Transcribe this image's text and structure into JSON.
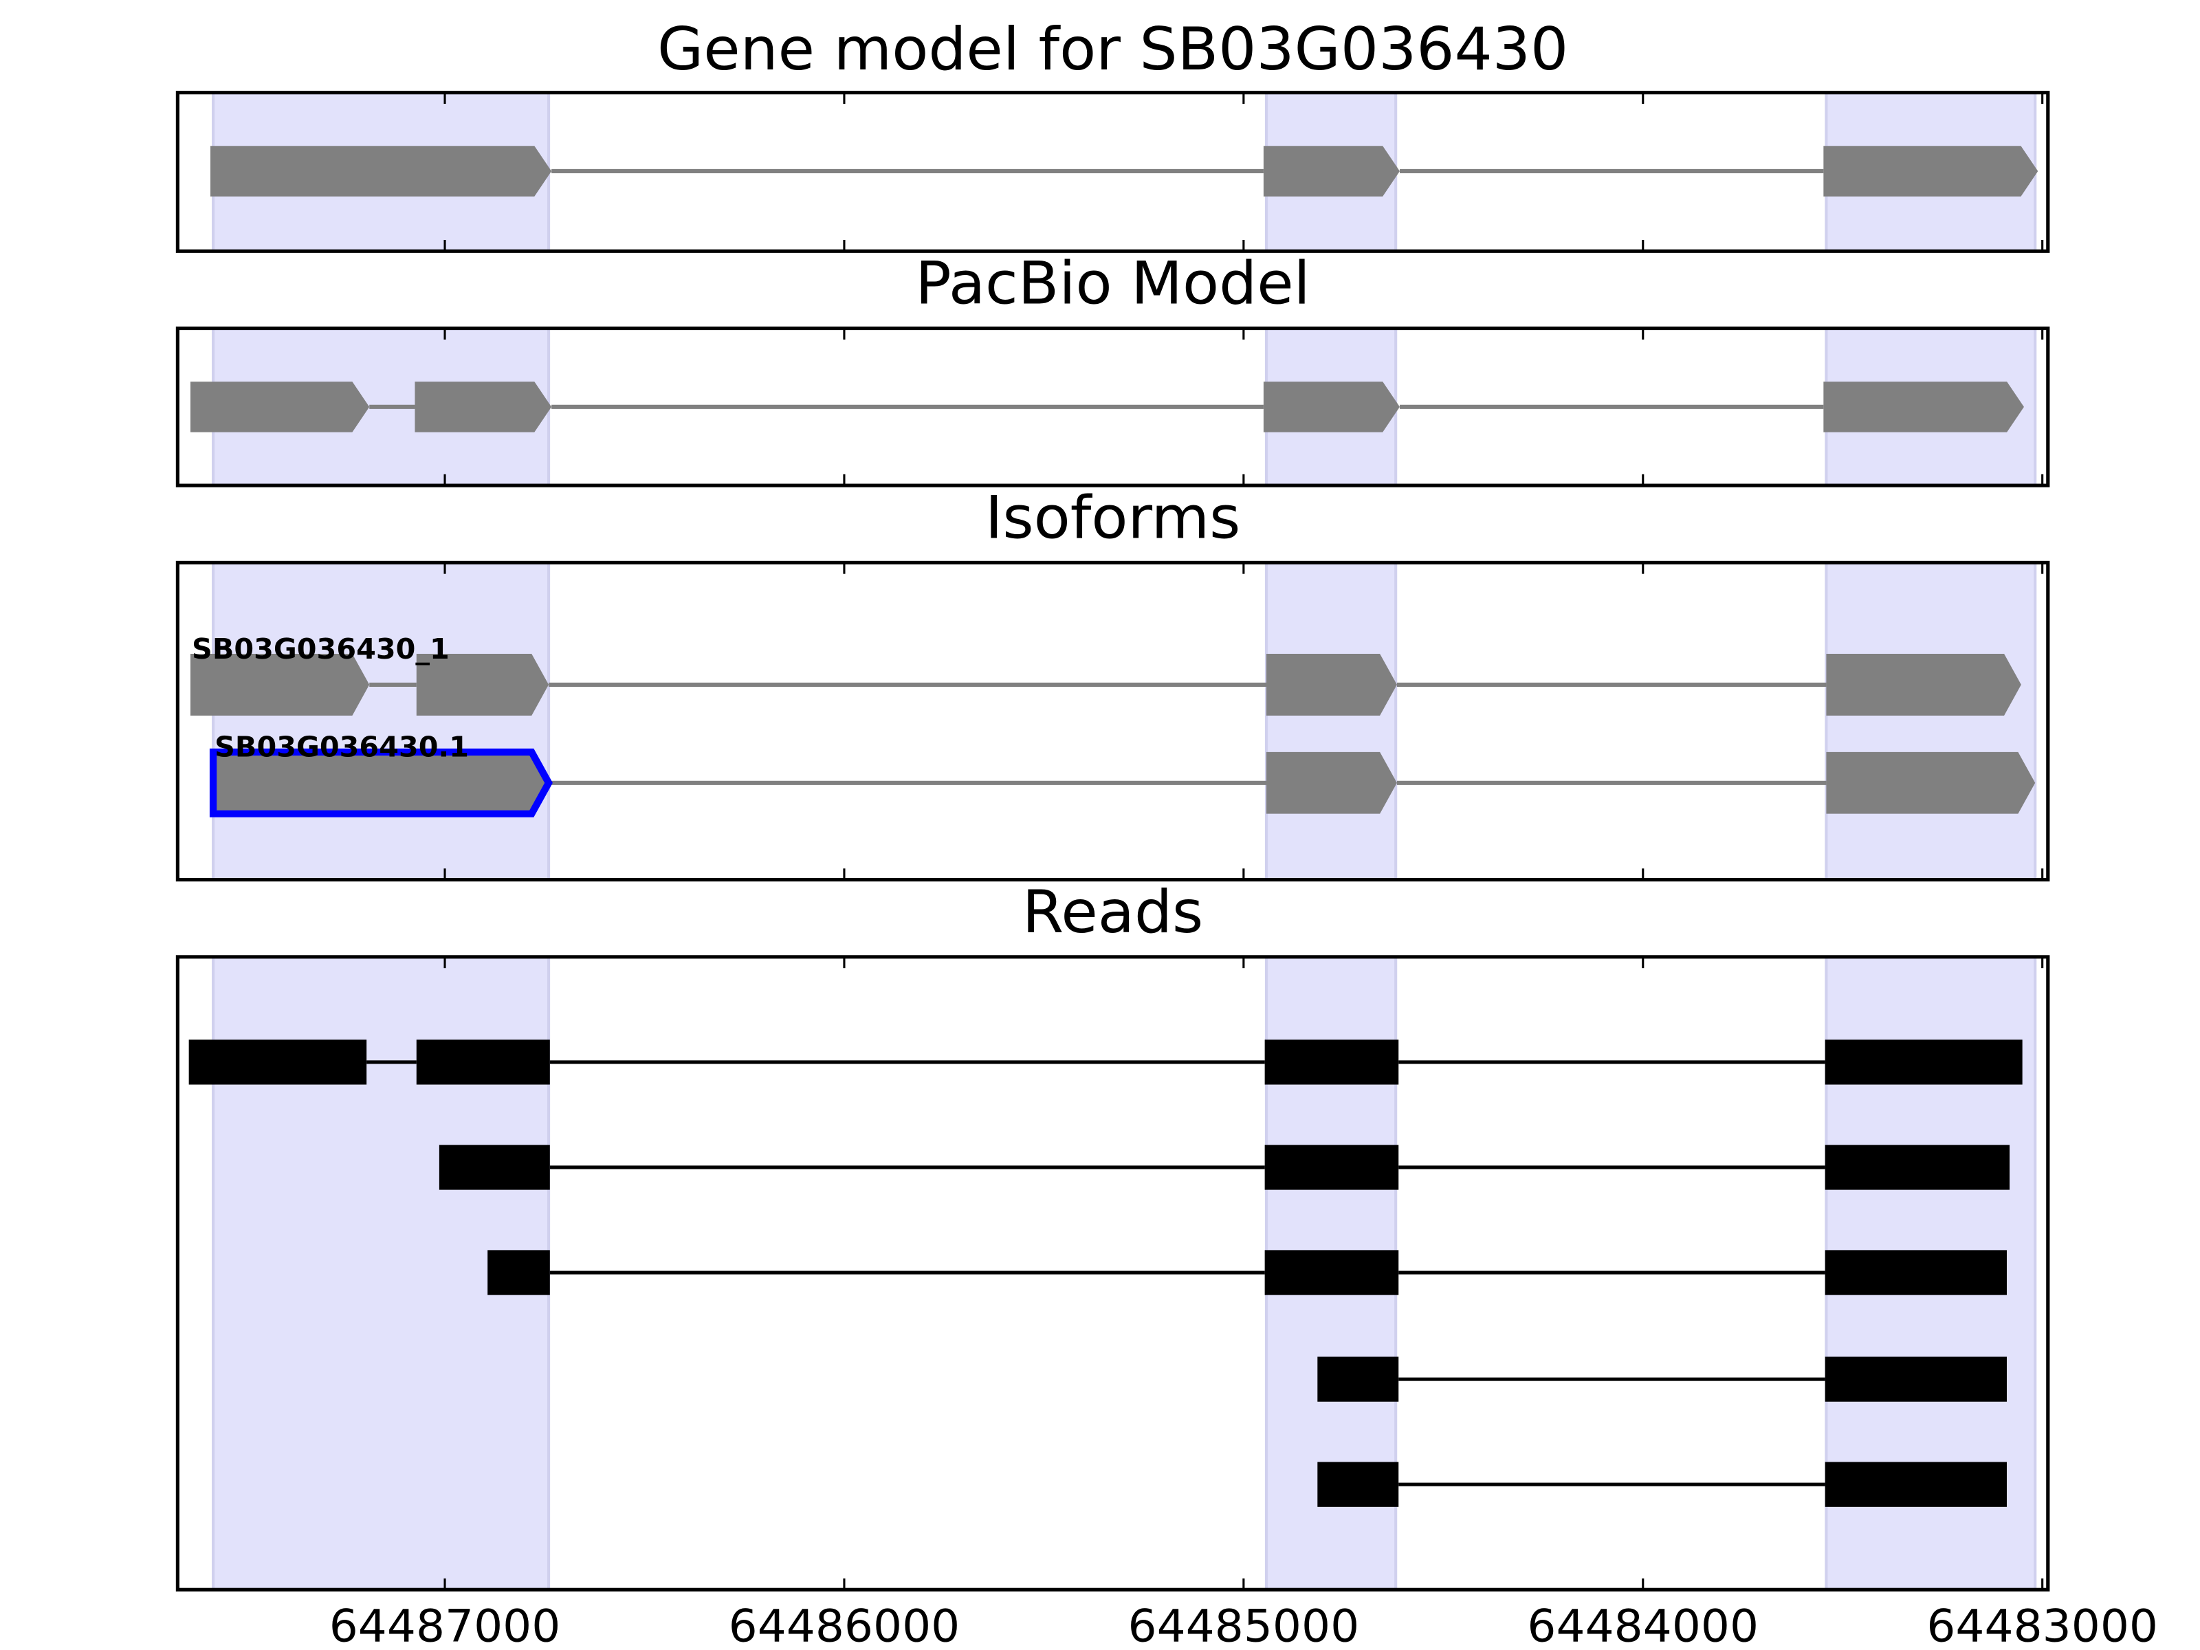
{
  "chart_data": [
    {
      "type": "gene",
      "title": "Gene model for SB03G036430",
      "exon_shape": "arrow",
      "xlim": [
        64487669,
        64482986
      ],
      "xticks": [
        64487000,
        64486000,
        64485000,
        64484000,
        64483000
      ],
      "highlight": [
        [
          64487580,
          64486740
        ],
        [
          64484943,
          64484619
        ],
        [
          64483541,
          64483018
        ]
      ],
      "highlight_color": "#e2e2fb",
      "tracks": [
        {
          "color": "#808080",
          "exons": [
            [
              64487587,
              64486733
            ],
            [
              64484950,
              64484609
            ],
            [
              64483548,
              64483011
            ]
          ]
        }
      ]
    },
    {
      "type": "gene",
      "title": "PacBio Model",
      "exon_shape": "arrow",
      "xlim": [
        64487669,
        64482986
      ],
      "xticks": [
        64487000,
        64486000,
        64485000,
        64484000,
        64483000
      ],
      "highlight": [
        [
          64487580,
          64486740
        ],
        [
          64484943,
          64484619
        ],
        [
          64483541,
          64483018
        ]
      ],
      "highlight_color": "#e2e2fb",
      "tracks": [
        {
          "color": "#808080",
          "exons": [
            [
              64487637,
              64487189
            ],
            [
              64487075,
              64486733
            ],
            [
              64484950,
              64484609
            ],
            [
              64483548,
              64483046
            ]
          ]
        }
      ]
    },
    {
      "type": "gene",
      "title": "Isoforms",
      "exon_shape": "arrow",
      "xlim": [
        64487669,
        64482986
      ],
      "xticks": [
        64487000,
        64486000,
        64485000,
        64484000,
        64483000
      ],
      "highlight": [
        [
          64487580,
          64486740
        ],
        [
          64484943,
          64484619
        ],
        [
          64483541,
          64483018
        ]
      ],
      "highlight_color": "#e2e2fb",
      "tracks": [
        {
          "name": "SB03G036430_1",
          "color": "#808080",
          "exons": [
            [
              64487637,
              64487189
            ],
            [
              64487071,
              64486740
            ],
            [
              64484943,
              64484616
            ],
            [
              64483541,
              64483053
            ]
          ]
        },
        {
          "name": "SB03G036430.1",
          "color": "#808080",
          "outline": "#0000ff",
          "exons": [
            [
              64487580,
              64486740
            ],
            [
              64484943,
              64484616
            ],
            [
              64483541,
              64483018
            ]
          ]
        }
      ]
    },
    {
      "type": "gene",
      "title": "Reads",
      "exon_shape": "box",
      "xlim": [
        64487669,
        64482986
      ],
      "xticks": [
        64487000,
        64486000,
        64485000,
        64484000,
        64483000
      ],
      "highlight": [
        [
          64487580,
          64486740
        ],
        [
          64484943,
          64484619
        ],
        [
          64483541,
          64483018
        ]
      ],
      "highlight_color": "#e2e2fb",
      "tracks": [
        {
          "color": "#000000",
          "exons": [
            [
              64487641,
              64487196
            ],
            [
              64487071,
              64486737
            ],
            [
              64484947,
              64484612
            ],
            [
              64483544,
              64483050
            ]
          ]
        },
        {
          "color": "#000000",
          "exons": [
            [
              64487014,
              64486737
            ],
            [
              64484947,
              64484612
            ],
            [
              64483544,
              64483082
            ]
          ]
        },
        {
          "color": "#000000",
          "exons": [
            [
              64486893,
              64486737
            ],
            [
              64484947,
              64484612
            ],
            [
              64483544,
              64483089
            ]
          ]
        },
        {
          "color": "#000000",
          "exons": [
            [
              64484815,
              64484612
            ],
            [
              64483544,
              64483089
            ]
          ]
        },
        {
          "color": "#000000",
          "exons": [
            [
              64484815,
              64484612
            ],
            [
              64483544,
              64483089
            ]
          ]
        }
      ]
    }
  ]
}
